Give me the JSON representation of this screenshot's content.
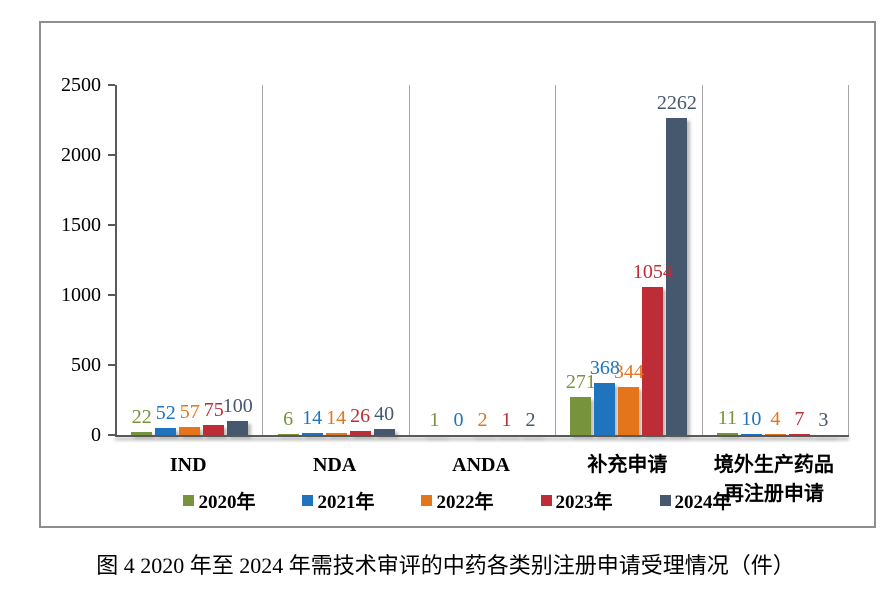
{
  "figure": {
    "caption": "图 4  2020 年至 2024 年需技术审评的中药各类别注册申请受理情况（件）"
  },
  "chart_data": {
    "type": "bar",
    "title": "",
    "xlabel": "",
    "ylabel": "",
    "categories": [
      "IND",
      "NDA",
      "ANDA",
      "补充申请",
      "境外生产药品\n再注册申请"
    ],
    "series": [
      {
        "name": "2020年",
        "color": "#77933C",
        "values": [
          22,
          6,
          1,
          271,
          11
        ]
      },
      {
        "name": "2021年",
        "color": "#1F74BD",
        "values": [
          52,
          14,
          0,
          368,
          10
        ]
      },
      {
        "name": "2022年",
        "color": "#E5751A",
        "values": [
          57,
          14,
          2,
          344,
          4
        ]
      },
      {
        "name": "2023年",
        "color": "#BE2D35",
        "values": [
          75,
          26,
          1,
          1054,
          7
        ]
      },
      {
        "name": "2024年",
        "color": "#45586E",
        "values": [
          100,
          40,
          2,
          2262,
          3
        ]
      }
    ],
    "ylim": [
      0,
      2500
    ],
    "yticks": [
      0,
      500,
      1000,
      1500,
      2000,
      2500
    ],
    "grid": "vertical-category-separators",
    "legend_position": "bottom",
    "data_labels": true,
    "axis_color": "#595959",
    "separator_color": "#A6A6A6",
    "border_color": "#8E8E8E"
  }
}
